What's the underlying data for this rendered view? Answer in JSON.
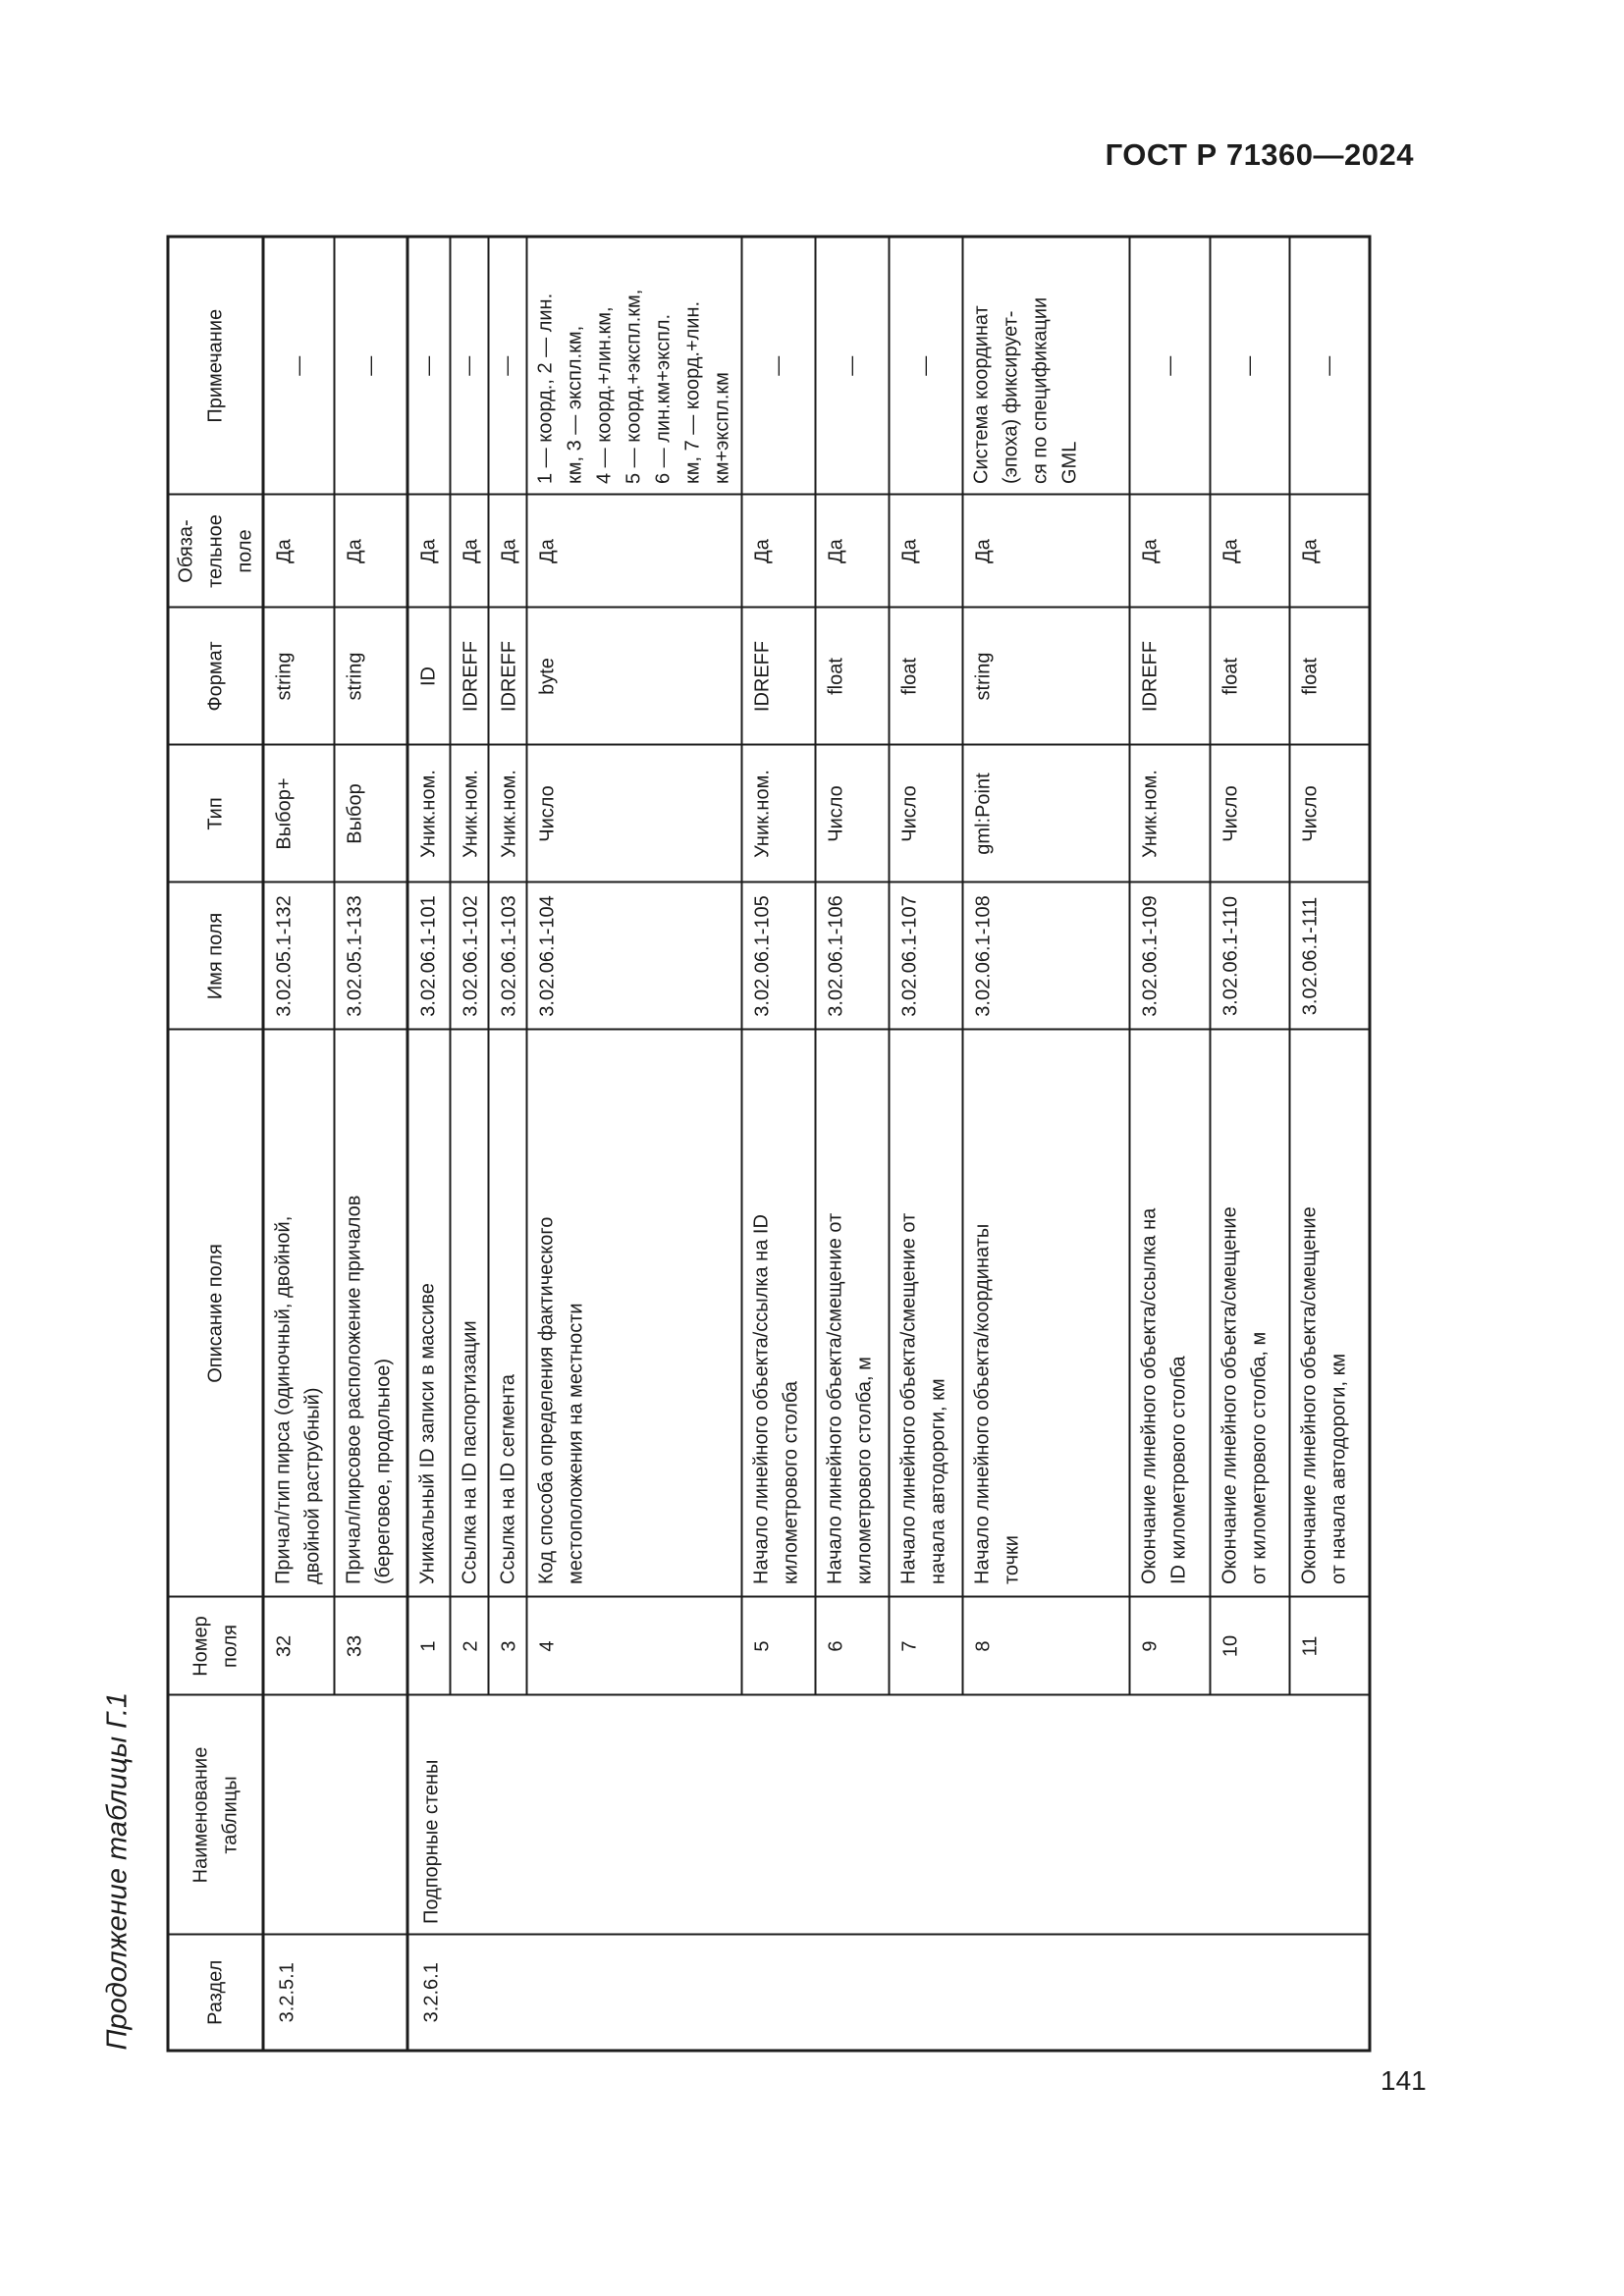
{
  "page": {
    "standard_reference": "ГОСТ Р 71360—2024",
    "page_number": "141",
    "table_caption": "Продолжение таблицы Г.1"
  },
  "table": {
    "headers": {
      "razdel": "Раздел",
      "naimenovanie": "Наименование\nтаблицы",
      "nomer": "Номер\nполя",
      "opisanie": "Описание поля",
      "imya": "Имя поля",
      "tip": "Тип",
      "format": "Формат",
      "obyaz": "Обяза-\nтельное\nполе",
      "prim": "Примечание"
    },
    "groups": [
      {
        "razdel": "3.2.5.1",
        "naimenovanie": "",
        "rows": [
          {
            "nomer": "32",
            "opisanie": "Причал/тип пирса (одиночный, двойной,\nдвойной раструбный)",
            "imya": "3.02.05.1-132",
            "tip": "Выбор+",
            "format": "string",
            "obyaz": "Да",
            "prim": "—"
          },
          {
            "nomer": "33",
            "opisanie": "Причал/пирсовое расположение причалов\n(береговое, продольное)",
            "imya": "3.02.05.1-133",
            "tip": "Выбор",
            "format": "string",
            "obyaz": "Да",
            "prim": "—"
          }
        ]
      },
      {
        "razdel": "3.2.6.1",
        "naimenovanie": "Подпорные стены",
        "rows": [
          {
            "nomer": "1",
            "opisanie": "Уникальный ID записи в массиве",
            "imya": "3.02.06.1-101",
            "tip": "Уник.ном.",
            "format": "ID",
            "obyaz": "Да",
            "prim": "—"
          },
          {
            "nomer": "2",
            "opisanie": "Ссылка на ID паспортизации",
            "imya": "3.02.06.1-102",
            "tip": "Уник.ном.",
            "format": "IDREFF",
            "obyaz": "Да",
            "prim": "—"
          },
          {
            "nomer": "3",
            "opisanie": "Ссылка на ID сегмента",
            "imya": "3.02.06.1-103",
            "tip": "Уник.ном.",
            "format": "IDREFF",
            "obyaz": "Да",
            "prim": "—"
          },
          {
            "nomer": "4",
            "opisanie": "Код способа определения фактического\nместоположения на местности",
            "imya": "3.02.06.1-104",
            "tip": "Число",
            "format": "byte",
            "obyaz": "Да",
            "prim": "1 — коорд., 2 — лин.\nкм, 3 — экспл.км,\n4 — коорд.+лин.км,\n5 — коорд.+экспл.км,\n6 — лин.км+экспл.\nкм, 7 — коорд.+лин.\nкм+экспл.км"
          },
          {
            "nomer": "5",
            "opisanie": "Начало линейного объекта/ссылка на ID\nкилометрового столба",
            "imya": "3.02.06.1-105",
            "tip": "Уник.ном.",
            "format": "IDREFF",
            "obyaz": "Да",
            "prim": "—"
          },
          {
            "nomer": "6",
            "opisanie": "Начало линейного объекта/смещение от\nкилометрового столба, м",
            "imya": "3.02.06.1-106",
            "tip": "Число",
            "format": "float",
            "obyaz": "Да",
            "prim": "—"
          },
          {
            "nomer": "7",
            "opisanie": "Начало линейного объекта/смещение от\nначала автодороги, км",
            "imya": "3.02.06.1-107",
            "tip": "Число",
            "format": "float",
            "obyaz": "Да",
            "prim": "—"
          },
          {
            "nomer": "8",
            "opisanie": "Начало линейного объекта/координаты\nточки",
            "imya": "3.02.06.1-108",
            "tip": "gml:Point",
            "format": "string",
            "obyaz": "Да",
            "prim": "Система координат\n(эпоха) фиксирует-\nся по спецификации\nGML"
          },
          {
            "nomer": "9",
            "opisanie": "Окончание линейного объекта/ссылка на\nID километрового столба",
            "imya": "3.02.06.1-109",
            "tip": "Уник.ном.",
            "format": "IDREFF",
            "obyaz": "Да",
            "prim": "—"
          },
          {
            "nomer": "10",
            "opisanie": "Окончание линейного объекта/смещение\nот километрового столба, м",
            "imya": "3.02.06.1-110",
            "tip": "Число",
            "format": "float",
            "obyaz": "Да",
            "prim": "—"
          },
          {
            "nomer": "11",
            "opisanie": "Окончание линейного объекта/смещение\nот начала автодороги, км",
            "imya": "3.02.06.1-111",
            "tip": "Число",
            "format": "float",
            "obyaz": "Да",
            "prim": "—"
          }
        ]
      }
    ]
  }
}
